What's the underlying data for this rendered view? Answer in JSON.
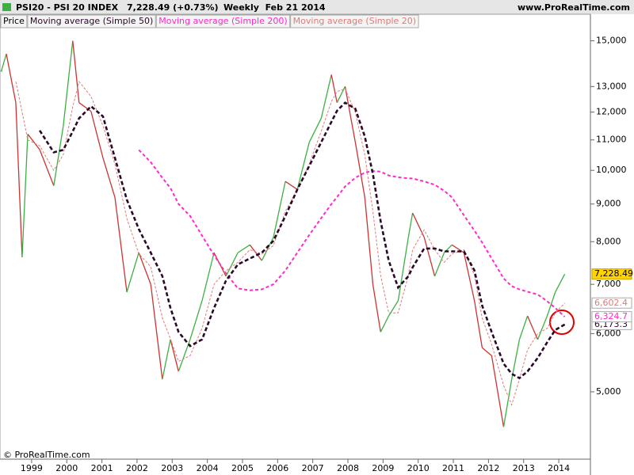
{
  "header": {
    "symbol": "PSI20 - PSI 20 INDEX",
    "quote": "7,228.49 (+0.73%)",
    "period": "Weekly  Feb 21 2014",
    "site": "www.ProRealTime.com"
  },
  "footer": {
    "copyright": "© ProRealTime.com"
  },
  "chart_data": {
    "type": "line",
    "log_scale": true,
    "grid": false,
    "xlim": [
      1998.1,
      2014.9
    ],
    "xticks": [
      1999,
      2000,
      2001,
      2002,
      2003,
      2004,
      2005,
      2006,
      2007,
      2008,
      2009,
      2010,
      2011,
      2012,
      2013,
      2014
    ],
    "ylim": [
      4050,
      16300
    ],
    "yticks": [
      {
        "value": 5000,
        "label": "5,000"
      },
      {
        "value": 6000,
        "label": "6,000"
      },
      {
        "value": 7000,
        "label": "7,000"
      },
      {
        "value": 8000,
        "label": "8,000"
      },
      {
        "value": 9000,
        "label": "9,000"
      },
      {
        "value": 10000,
        "label": "10,000"
      },
      {
        "value": 11000,
        "label": "11,000"
      },
      {
        "value": 12000,
        "label": "12,000"
      },
      {
        "value": 13000,
        "label": "13,000"
      },
      {
        "value": 15000,
        "label": "15,000"
      }
    ],
    "x": [
      1998.14,
      1998.28,
      1998.55,
      1998.73,
      1998.89,
      1999.23,
      1999.63,
      1999.9,
      2000.17,
      2000.35,
      2000.69,
      2001.03,
      2001.37,
      2001.71,
      2002.05,
      2002.39,
      2002.72,
      2002.95,
      2003.18,
      2003.51,
      2003.85,
      2004.19,
      2004.53,
      2004.87,
      2005.21,
      2005.55,
      2005.88,
      2006.22,
      2006.56,
      2006.9,
      2007.24,
      2007.53,
      2007.69,
      2007.92,
      2008.21,
      2008.48,
      2008.71,
      2008.93,
      2009.16,
      2009.43,
      2009.72,
      2009.84,
      2010.17,
      2010.47,
      2010.74,
      2010.96,
      2011.3,
      2011.6,
      2011.82,
      2012.09,
      2012.43,
      2012.66,
      2012.88,
      2013.11,
      2013.4,
      2013.67,
      2013.9,
      2014.17
    ],
    "series": [
      {
        "name": "Price",
        "color": "#000000",
        "up_color": "#3cb043",
        "down_color": "#cc3333",
        "last_value_label": "7,228.49",
        "values": [
          13650,
          14400,
          12360,
          7620,
          11200,
          10670,
          9530,
          11480,
          15000,
          12360,
          12030,
          10400,
          9190,
          6830,
          7730,
          7000,
          5200,
          5890,
          5330,
          5890,
          6650,
          7730,
          7180,
          7730,
          7920,
          7540,
          8110,
          9660,
          9420,
          10920,
          11770,
          13490,
          12360,
          13000,
          10920,
          9190,
          7000,
          6030,
          6340,
          6650,
          8110,
          8750,
          8110,
          7180,
          7730,
          7920,
          7730,
          6650,
          5740,
          5600,
          4480,
          5200,
          5890,
          6340,
          5890,
          6340,
          6830,
          7228.49
        ]
      },
      {
        "name": "Moving average (Simple 50)",
        "color": "#2a0a28",
        "last_value_label": "6,173.3",
        "values": [
          null,
          null,
          null,
          null,
          null,
          11330,
          10580,
          10660,
          11300,
          11770,
          12220,
          11840,
          10400,
          9120,
          8320,
          7730,
          7180,
          6500,
          6030,
          5770,
          5890,
          6500,
          7080,
          7450,
          7590,
          7730,
          8020,
          8670,
          9420,
          10140,
          10920,
          11640,
          12050,
          12360,
          12130,
          11120,
          9890,
          8530,
          7540,
          6930,
          7180,
          7380,
          7830,
          7830,
          7760,
          7760,
          7760,
          7310,
          6550,
          6030,
          5460,
          5290,
          5220,
          5330,
          5560,
          5840,
          6070,
          6173.3
        ]
      },
      {
        "name": "Moving average (Simple 200)",
        "color": "#ff2bc8",
        "last_value_label": "6,324.7",
        "values": [
          null,
          null,
          null,
          null,
          null,
          null,
          null,
          null,
          null,
          null,
          null,
          null,
          null,
          null,
          10660,
          10260,
          9770,
          9460,
          9000,
          8670,
          8150,
          7670,
          7250,
          6910,
          6870,
          6890,
          7000,
          7310,
          7730,
          8170,
          8610,
          9000,
          9200,
          9510,
          9770,
          9930,
          9980,
          9960,
          9840,
          9790,
          9750,
          9750,
          9660,
          9560,
          9380,
          9190,
          8690,
          8280,
          7980,
          7590,
          7130,
          6960,
          6890,
          6840,
          6780,
          6640,
          6500,
          6324.7
        ]
      },
      {
        "name": "Moving average (Simple 20)",
        "color": "#e07a7a",
        "last_value_label": "6,602.4",
        "values": [
          null,
          null,
          13200,
          12000,
          11000,
          10800,
          10000,
          10500,
          12200,
          13200,
          12600,
          11500,
          10200,
          8600,
          7700,
          7400,
          6300,
          5900,
          5500,
          5600,
          6100,
          7000,
          7300,
          7500,
          7800,
          7700,
          7900,
          8800,
          9400,
          10200,
          11300,
          12400,
          12800,
          12900,
          12000,
          10500,
          8800,
          7200,
          6400,
          6400,
          7200,
          7800,
          8300,
          7800,
          7500,
          7700,
          7800,
          7200,
          6300,
          5800,
          5100,
          4800,
          5200,
          5700,
          6000,
          6100,
          6400,
          6602.4
        ]
      }
    ]
  }
}
